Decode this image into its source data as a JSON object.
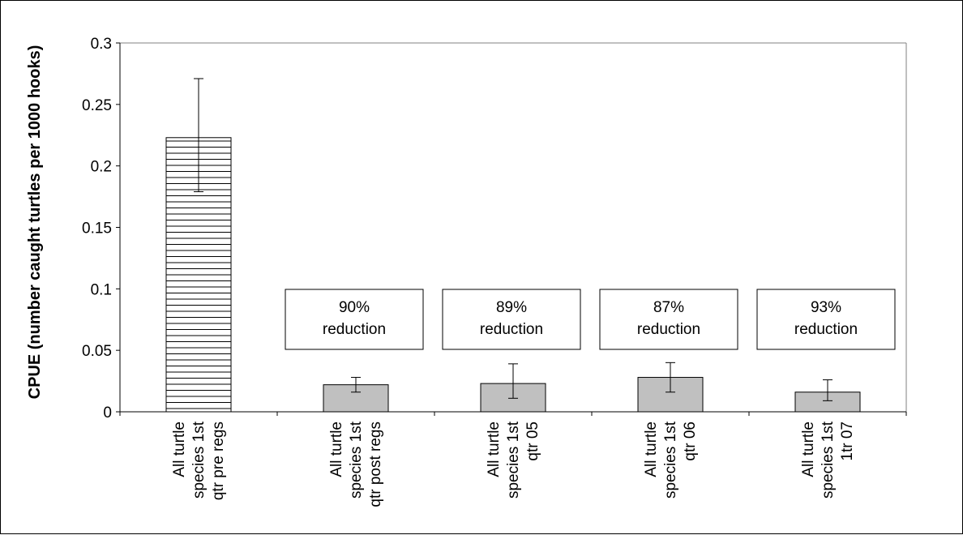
{
  "chart_data": {
    "type": "bar",
    "title": "",
    "xlabel": "",
    "ylabel": "CPUE (number caught turtles per 1000 hooks)",
    "ylim": [
      0,
      0.3
    ],
    "yticks": [
      "0",
      "0.05",
      "0.1",
      "0.15",
      "0.2",
      "0.25",
      "0.3"
    ],
    "grid": false,
    "legend": "none",
    "categories": [
      [
        "All turtle",
        "species 1st",
        "qtr pre regs"
      ],
      [
        "All turtle",
        "species 1st",
        "qtr post regs"
      ],
      [
        "All turtle",
        "species 1st",
        "qtr 05"
      ],
      [
        "All turtle",
        "species 1st",
        "qtr 06"
      ],
      [
        "All turtle",
        "species 1st",
        "1tr 07"
      ]
    ],
    "values": [
      0.223,
      0.022,
      0.023,
      0.028,
      0.016
    ],
    "error_low": [
      0.179,
      0.016,
      0.011,
      0.016,
      0.009
    ],
    "error_high": [
      0.271,
      0.028,
      0.039,
      0.04,
      0.026
    ],
    "bar_styles": [
      "horizontal-hatch",
      "solid-gray",
      "solid-gray",
      "solid-gray",
      "solid-gray"
    ],
    "annotations": [
      {
        "category_index": 1,
        "lines": [
          "90%",
          "reduction"
        ]
      },
      {
        "category_index": 2,
        "lines": [
          "89%",
          "reduction"
        ]
      },
      {
        "category_index": 3,
        "lines": [
          "87%",
          "reduction"
        ]
      },
      {
        "category_index": 4,
        "lines": [
          "93%",
          "reduction"
        ]
      }
    ]
  },
  "colors": {
    "bar_fill": "#c0c0c0",
    "hatch_bg": "#ffffff",
    "hatch_line": "#000000",
    "axis": "#000000",
    "plot_border": "#808080"
  }
}
